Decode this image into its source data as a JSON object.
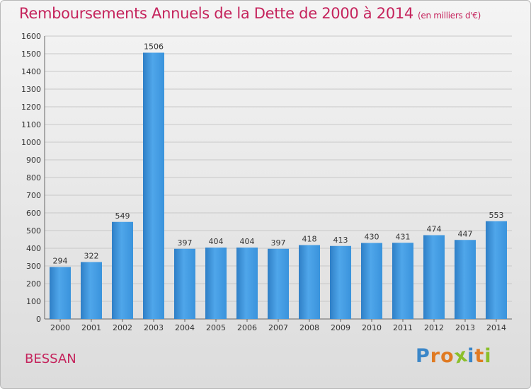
{
  "chart_data": {
    "type": "bar",
    "title": "Remboursements Annuels de la Dette de 2000 à 2014",
    "subtitle": "(en milliers d'€)",
    "categories": [
      "2000",
      "2001",
      "2002",
      "2003",
      "2004",
      "2005",
      "2006",
      "2007",
      "2008",
      "2009",
      "2010",
      "2011",
      "2012",
      "2013",
      "2014"
    ],
    "values": [
      294,
      322,
      549,
      1506,
      397,
      404,
      404,
      397,
      418,
      413,
      430,
      431,
      474,
      447,
      553
    ],
    "ylim": [
      0,
      1600
    ],
    "yticks": [
      0,
      100,
      200,
      300,
      400,
      500,
      600,
      700,
      800,
      900,
      1000,
      1100,
      1200,
      1300,
      1400,
      1500,
      1600
    ],
    "grid": true,
    "bar_color": "#3a93dc",
    "title_color": "#c5235c"
  },
  "footer": {
    "commune": "BESSAN"
  },
  "logo": {
    "letters": [
      "P",
      "r",
      "o",
      "x",
      "i",
      "t",
      "i"
    ],
    "colors": [
      "#3a86c8",
      "#e07a22",
      "#e07a22",
      "#8bbf2a",
      "#3a86c8",
      "#e07a22",
      "#8bbf2a"
    ]
  }
}
